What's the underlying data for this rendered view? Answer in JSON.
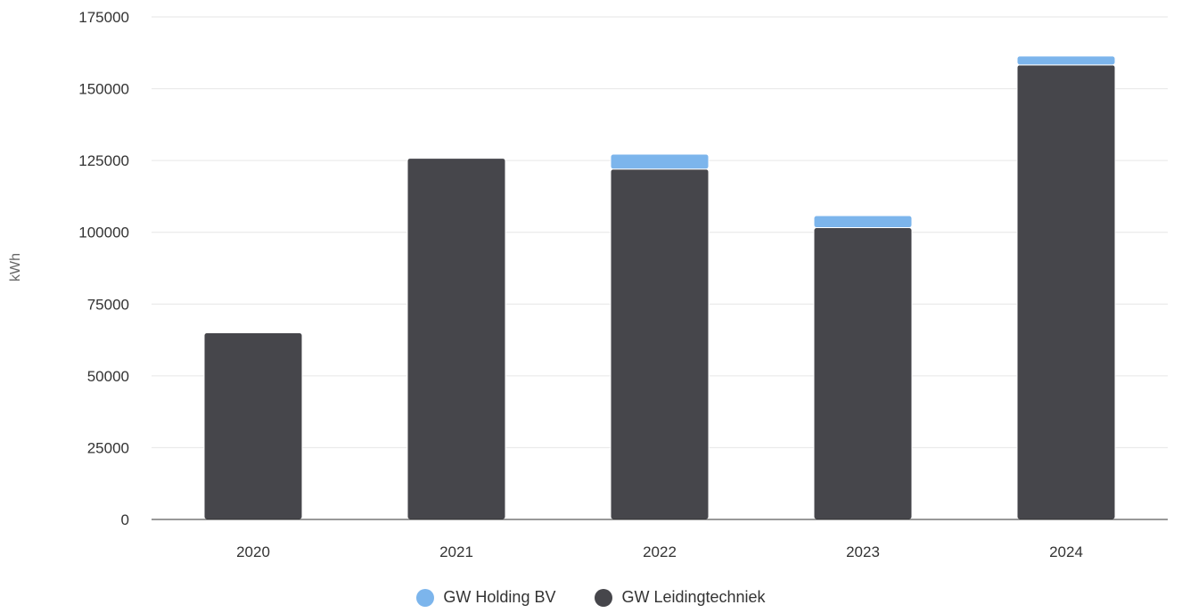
{
  "chart_data": {
    "type": "bar",
    "stacked": true,
    "categories": [
      "2020",
      "2021",
      "2022",
      "2023",
      "2024"
    ],
    "series": [
      {
        "name": "GW Leidingtechniek",
        "color": "#46464b",
        "values": [
          65000,
          125800,
          122000,
          101600,
          158300
        ]
      },
      {
        "name": "GW Holding BV",
        "color": "#7cb5ec",
        "values": [
          0,
          0,
          5200,
          4200,
          3100
        ]
      }
    ],
    "ylabel": "kWh",
    "ylim": [
      0,
      175000
    ],
    "yticks": [
      "0",
      "25000",
      "50000",
      "75000",
      "100000",
      "125000",
      "150000",
      "175000"
    ],
    "grid": true,
    "legend": {
      "position": "bottom-center",
      "entries": [
        {
          "name": "GW Holding BV",
          "color": "#7cb5ec"
        },
        {
          "name": "GW Leidingtechniek",
          "color": "#46464b"
        }
      ]
    }
  }
}
